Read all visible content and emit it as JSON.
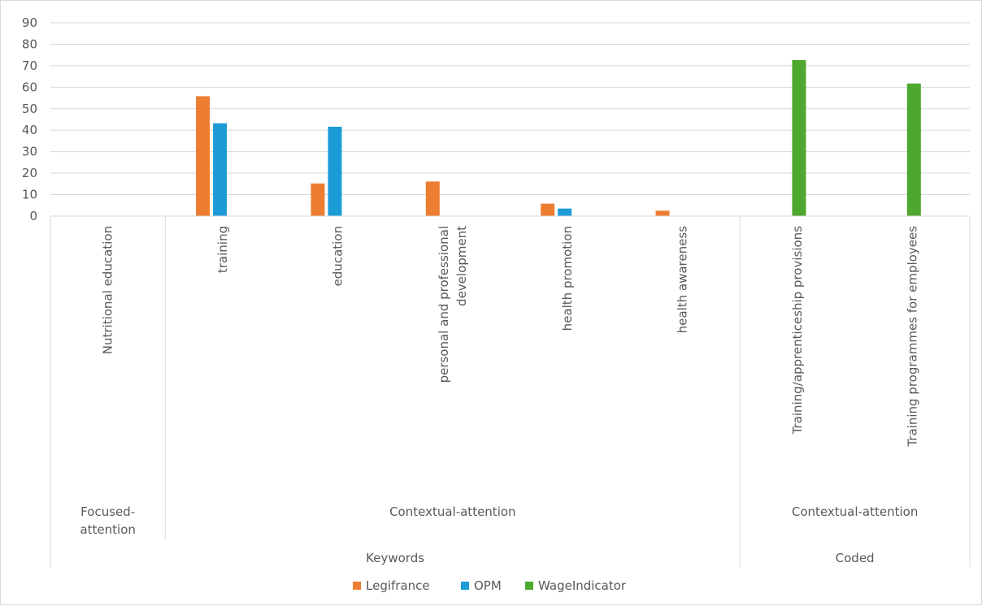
{
  "chart_data": {
    "type": "bar",
    "ylim": [
      0,
      90
    ],
    "yticks": [
      0,
      10,
      20,
      30,
      40,
      50,
      60,
      70,
      80,
      90
    ],
    "grid": true,
    "legend_position": "bottom",
    "categories": [
      "Nutritional education",
      "training",
      "education",
      "personal and professional development",
      "health promotion",
      "health awareness",
      "Training/apprenticeship provisions",
      "Training programmes for employees"
    ],
    "series": [
      {
        "name": "Legifrance",
        "color": "#ed7d31",
        "values": [
          0,
          55.8,
          15.2,
          16.1,
          5.8,
          2.5,
          0,
          0
        ]
      },
      {
        "name": "OPM",
        "color": "#1d9bd7",
        "values": [
          0,
          43.2,
          41.6,
          0,
          3.5,
          0,
          0,
          0
        ]
      },
      {
        "name": "WageIndicator",
        "color": "#4ea72e",
        "values": [
          0,
          0,
          0,
          0,
          0,
          0,
          72.6,
          61.7
        ]
      }
    ],
    "category_label_lines": [
      [
        "Nutritional education"
      ],
      [
        "training"
      ],
      [
        "education"
      ],
      [
        "personal and professional",
        "development"
      ],
      [
        "health promotion"
      ],
      [
        "health awareness"
      ],
      [
        "Training/apprenticeship provisions"
      ],
      [
        "Training programmes for employees"
      ]
    ],
    "group_level1": [
      {
        "label_lines": [
          "Focused-",
          "attention"
        ],
        "span": 1
      },
      {
        "label_lines": [
          "Contextual-attention"
        ],
        "span": 5
      },
      {
        "label_lines": [
          "Contextual-attention"
        ],
        "span": 2
      }
    ],
    "group_level2": [
      {
        "label": "Keywords",
        "span": 6
      },
      {
        "label": "Coded",
        "span": 2
      }
    ]
  }
}
